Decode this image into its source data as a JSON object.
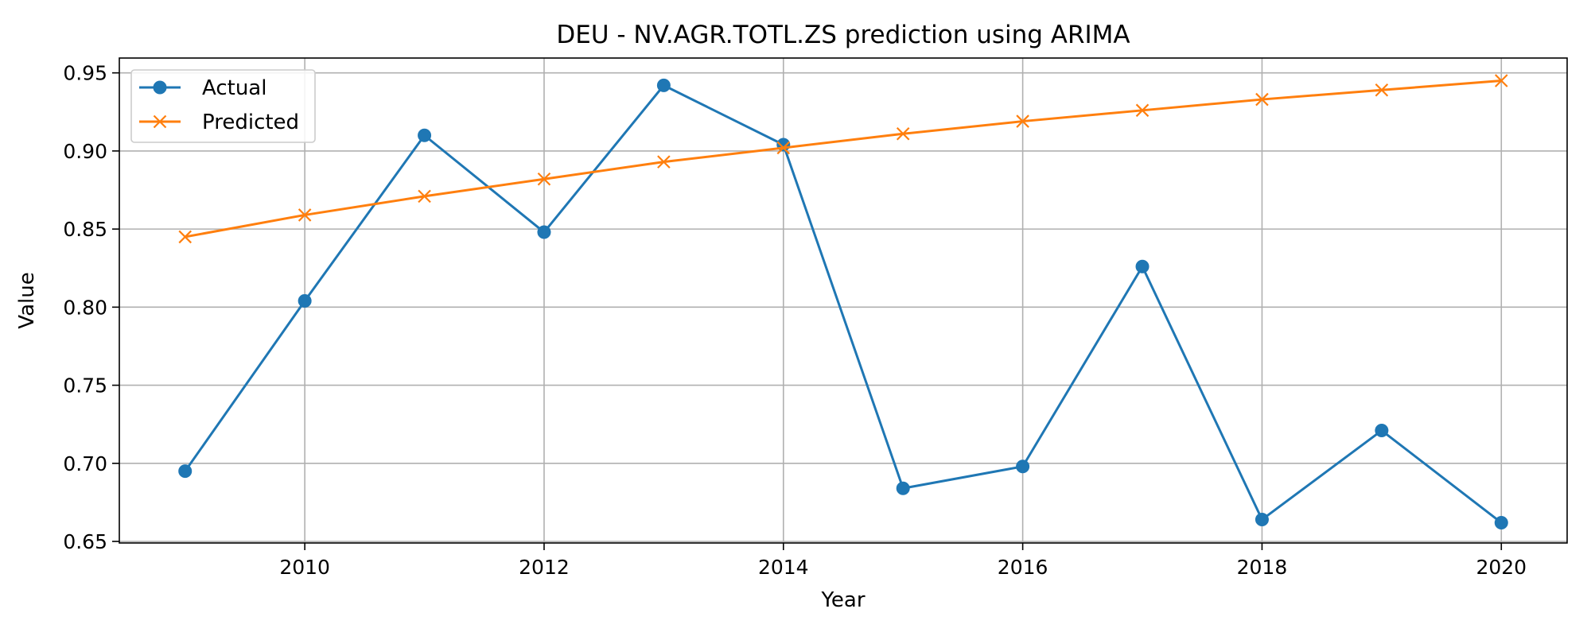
{
  "chart_data": {
    "type": "line",
    "title": "DEU - NV.AGR.TOTL.ZS prediction using ARIMA",
    "xlabel": "Year",
    "ylabel": "Value",
    "xlim": [
      2008.45,
      2020.55
    ],
    "ylim": [
      0.649,
      0.9595
    ],
    "xticks": [
      2010,
      2012,
      2014,
      2016,
      2018,
      2020
    ],
    "yticks": [
      0.65,
      0.7,
      0.75,
      0.8,
      0.85,
      0.9,
      0.95
    ],
    "grid": true,
    "legend_position": "upper-left",
    "x": [
      2009,
      2010,
      2011,
      2012,
      2013,
      2014,
      2015,
      2016,
      2017,
      2018,
      2019,
      2020
    ],
    "series": [
      {
        "name": "Actual",
        "color": "#1f77b4",
        "marker": "circle",
        "values": [
          0.695,
          0.804,
          0.91,
          0.848,
          0.942,
          0.904,
          0.684,
          0.698,
          0.826,
          0.664,
          0.721,
          0.662
        ]
      },
      {
        "name": "Predicted",
        "color": "#ff7f0e",
        "marker": "x",
        "values": [
          0.845,
          0.859,
          0.871,
          0.882,
          0.893,
          0.902,
          0.911,
          0.919,
          0.926,
          0.933,
          0.939,
          0.945
        ]
      }
    ]
  }
}
